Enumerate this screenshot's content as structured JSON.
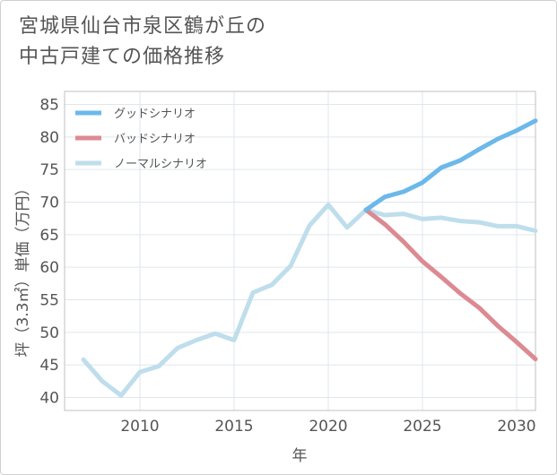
{
  "title_lines": [
    "宮城県仙台市泉区鶴が丘の",
    "中古戸建ての価格推移"
  ],
  "chart_data": {
    "type": "line",
    "xlabel": "年",
    "ylabel": "坪（3.3㎡）単価（万円）",
    "xlim": [
      2006,
      2031
    ],
    "ylim": [
      38,
      87
    ],
    "x_ticks": [
      2010,
      2015,
      2020,
      2025,
      2030
    ],
    "y_ticks": [
      40,
      45,
      50,
      55,
      60,
      65,
      70,
      75,
      80,
      85
    ],
    "grid": true,
    "legend_position": "top-left",
    "series": [
      {
        "name": "グッドシナリオ",
        "color": "#6cb8ea",
        "x": [
          2022,
          2023,
          2024,
          2025,
          2026,
          2027,
          2028,
          2029,
          2030,
          2031
        ],
        "y": [
          68.8,
          70.8,
          71.6,
          73.0,
          75.3,
          76.4,
          78.1,
          79.7,
          81.0,
          82.5
        ]
      },
      {
        "name": "バッドシナリオ",
        "color": "#dc8a92",
        "x": [
          2022,
          2023,
          2024,
          2025,
          2026,
          2027,
          2028,
          2029,
          2030,
          2031
        ],
        "y": [
          68.8,
          66.6,
          63.9,
          60.9,
          58.5,
          56.0,
          53.8,
          51.0,
          48.5,
          45.9
        ]
      },
      {
        "name": "ノーマルシナリオ",
        "color": "#bfdeec",
        "x": [
          2007,
          2008,
          2009,
          2010,
          2011,
          2012,
          2013,
          2014,
          2015,
          2016,
          2017,
          2018,
          2019,
          2020,
          2021,
          2022,
          2023,
          2024,
          2025,
          2026,
          2027,
          2028,
          2029,
          2030,
          2031
        ],
        "y": [
          45.8,
          42.5,
          40.3,
          43.9,
          44.8,
          47.6,
          48.8,
          49.8,
          48.8,
          56.1,
          57.3,
          60.2,
          66.4,
          69.6,
          66.1,
          68.8,
          68.0,
          68.2,
          67.4,
          67.6,
          67.1,
          66.9,
          66.3,
          66.3,
          65.6
        ]
      }
    ]
  }
}
